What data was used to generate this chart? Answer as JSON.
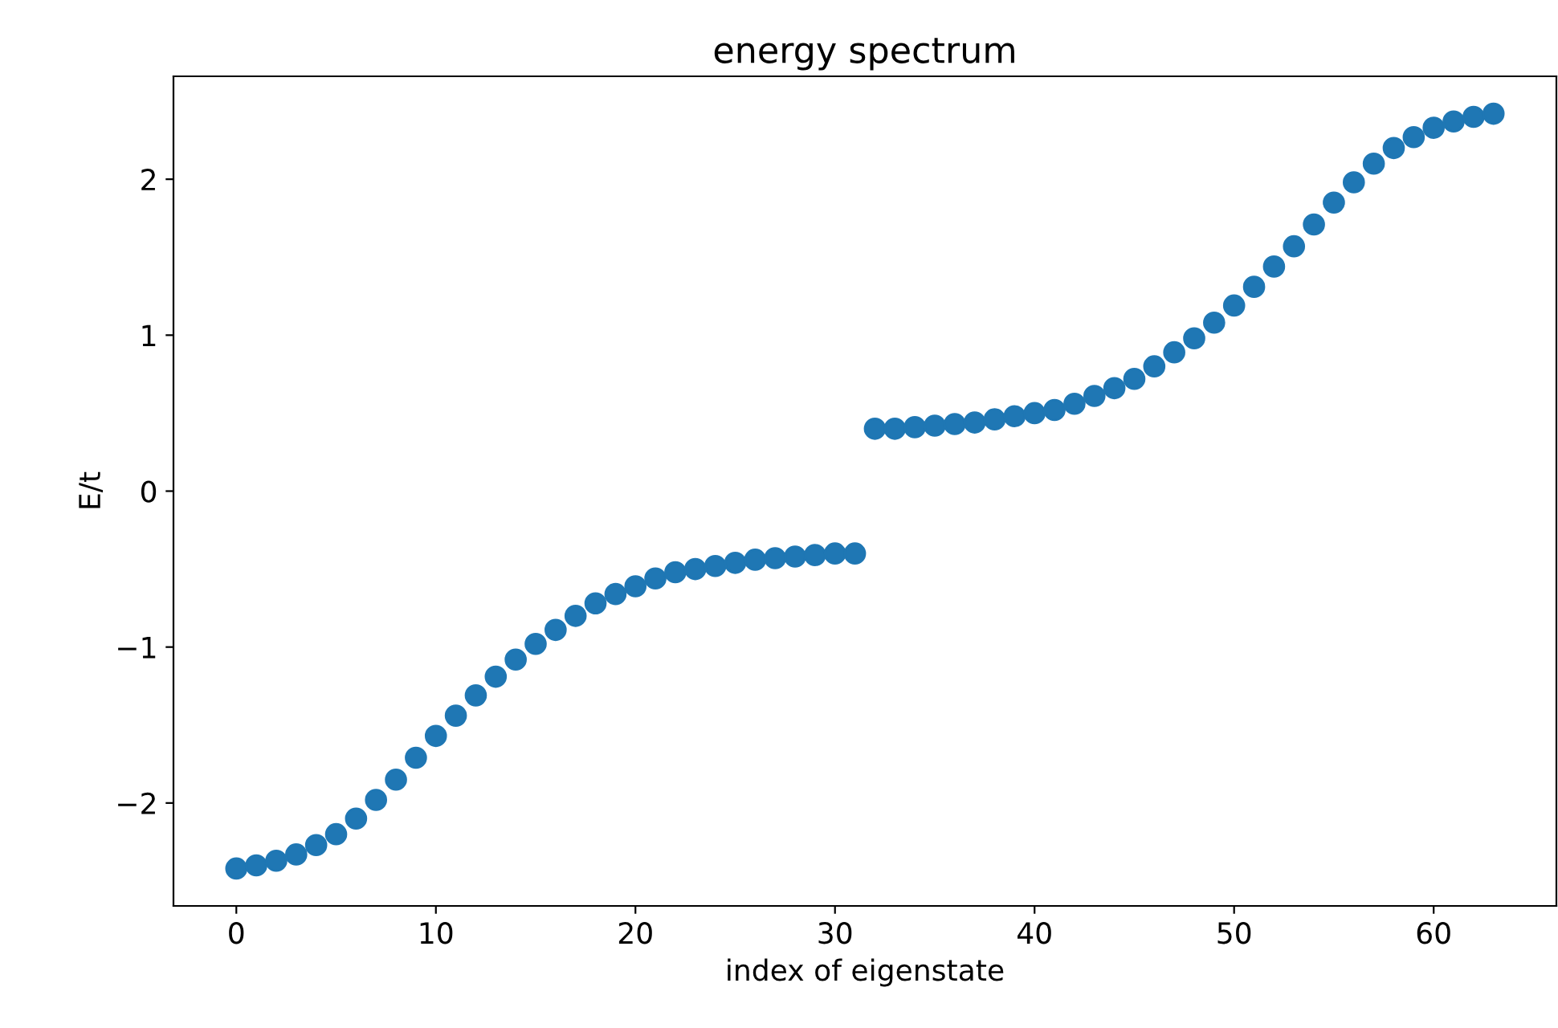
{
  "chart_data": {
    "type": "scatter",
    "title": "energy spectrum",
    "xlabel": "index of eigenstate",
    "ylabel": "E/t",
    "x": [
      0,
      1,
      2,
      3,
      4,
      5,
      6,
      7,
      8,
      9,
      10,
      11,
      12,
      13,
      14,
      15,
      16,
      17,
      18,
      19,
      20,
      21,
      22,
      23,
      24,
      25,
      26,
      27,
      28,
      29,
      30,
      31,
      32,
      33,
      34,
      35,
      36,
      37,
      38,
      39,
      40,
      41,
      42,
      43,
      44,
      45,
      46,
      47,
      48,
      49,
      50,
      51,
      52,
      53,
      54,
      55,
      56,
      57,
      58,
      59,
      60,
      61,
      62,
      63
    ],
    "series": [
      {
        "color": "#1f77b4",
        "values": [
          -2.42,
          -2.4,
          -2.37,
          -2.33,
          -2.27,
          -2.2,
          -2.1,
          -1.98,
          -1.85,
          -1.71,
          -1.57,
          -1.44,
          -1.31,
          -1.19,
          -1.08,
          -0.98,
          -0.89,
          -0.8,
          -0.72,
          -0.66,
          -0.61,
          -0.56,
          -0.52,
          -0.5,
          -0.48,
          -0.46,
          -0.44,
          -0.43,
          -0.42,
          -0.41,
          -0.4,
          -0.4,
          0.4,
          0.4,
          0.41,
          0.42,
          0.43,
          0.44,
          0.46,
          0.48,
          0.5,
          0.52,
          0.56,
          0.61,
          0.66,
          0.72,
          0.8,
          0.89,
          0.98,
          1.08,
          1.19,
          1.31,
          1.44,
          1.57,
          1.71,
          1.85,
          1.98,
          2.1,
          2.2,
          2.27,
          2.33,
          2.37,
          2.4,
          2.42
        ]
      }
    ],
    "marker": "circle",
    "xlim": [
      -3.15,
      66.15
    ],
    "ylim": [
      -2.66,
      2.66
    ],
    "xticks": [
      0,
      10,
      20,
      30,
      40,
      50,
      60
    ],
    "yticks": [
      -2,
      -1,
      0,
      1,
      2
    ],
    "grid": false,
    "legend": false
  }
}
